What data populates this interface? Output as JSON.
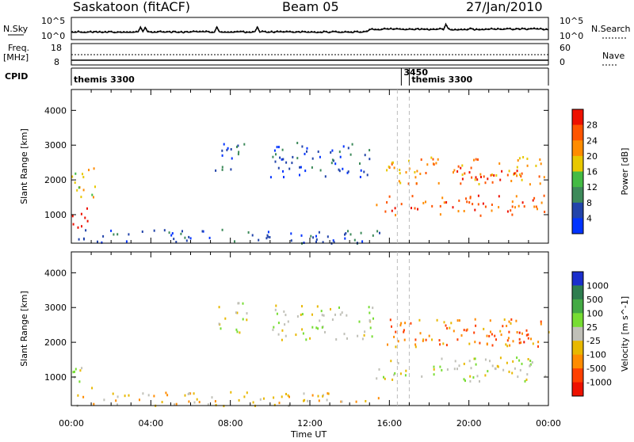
{
  "header": {
    "station": "Saskatoon (fitACF)",
    "beam": "Beam 05",
    "date": "27/Jan/2010"
  },
  "noise_panel": {
    "left_label": "N.Sky",
    "right_label": "N.Search",
    "left_ticks": [
      "10^5",
      "10^0"
    ],
    "right_ticks": [
      "10^5",
      "10^0"
    ]
  },
  "freq_panel": {
    "left_label_1": "Freq.",
    "left_label_2": "[MHz]",
    "right_label": "Nave",
    "left_ticks": [
      "18",
      "8"
    ],
    "right_ticks": [
      "60",
      "0"
    ]
  },
  "cpid_panel": {
    "label": "CPID",
    "entries": [
      {
        "text": "themis 3300",
        "time_h": 0.0
      },
      {
        "text": "3450",
        "time_h": 16.6
      },
      {
        "text": "themis 3300",
        "time_h": 17.0
      }
    ]
  },
  "chart_data": [
    {
      "type": "heatmap",
      "title": "Power",
      "ylabel": "Slant Range [km]",
      "ylim": [
        180,
        4600
      ],
      "y_ticks": [
        "1000",
        "2000",
        "3000",
        "4000"
      ],
      "colorbar_label": "Power [dB]",
      "colorbar_ticks": [
        "4",
        "8",
        "12",
        "16",
        "20",
        "24",
        "28"
      ],
      "colors": [
        "#0033ff",
        "#2244aa",
        "#3d8a5a",
        "#44bb44",
        "#e8c800",
        "#ff8c00",
        "#ff5500",
        "#ee1100"
      ],
      "regions": [
        {
          "t": [
            0.0,
            1.0
          ],
          "r": [
            600,
            1300
          ],
          "level": 7
        },
        {
          "t": [
            0.0,
            1.2
          ],
          "r": [
            1300,
            2400
          ],
          "level": 4
        },
        {
          "t": [
            0.2,
            15.5
          ],
          "r": [
            200,
            600
          ],
          "level": 1
        },
        {
          "t": [
            7.2,
            8.8
          ],
          "r": [
            2300,
            3200
          ],
          "level": 1
        },
        {
          "t": [
            10.0,
            15.3
          ],
          "r": [
            2100,
            3100
          ],
          "level": 1
        },
        {
          "t": [
            15.3,
            24.0
          ],
          "r": [
            1000,
            1600
          ],
          "level": 6
        },
        {
          "t": [
            15.8,
            24.0
          ],
          "r": [
            1900,
            2700
          ],
          "level": 5
        },
        {
          "t": [
            19.0,
            22.5
          ],
          "r": [
            2000,
            2400
          ],
          "level": 7
        }
      ]
    },
    {
      "type": "heatmap",
      "title": "Velocity",
      "ylabel": "Slant Range [km]",
      "ylim": [
        180,
        4600
      ],
      "y_ticks": [
        "1000",
        "2000",
        "3000",
        "4000"
      ],
      "colorbar_label": "Velocity [m s^-1]",
      "colorbar_ticks": [
        "1000",
        "500",
        "100",
        "25",
        "-25",
        "-100",
        "-500",
        "-1000"
      ],
      "colors": [
        "#1a2ecc",
        "#2e7d4f",
        "#44aa44",
        "#77dd33",
        "#c0c0b8",
        "#e8b800",
        "#ff8c00",
        "#ff4000",
        "#ee1100"
      ],
      "regions": [
        {
          "t": [
            0.0,
            1.0
          ],
          "r": [
            600,
            1300
          ],
          "level": 4
        },
        {
          "t": [
            0.2,
            15.5
          ],
          "r": [
            200,
            600
          ],
          "level": 5
        },
        {
          "t": [
            7.2,
            8.8
          ],
          "r": [
            2300,
            3200
          ],
          "level": 4
        },
        {
          "t": [
            10.0,
            15.3
          ],
          "r": [
            2100,
            3100
          ],
          "level": 4
        },
        {
          "t": [
            15.3,
            24.0
          ],
          "r": [
            900,
            1600
          ],
          "level": 4
        },
        {
          "t": [
            15.8,
            24.0
          ],
          "r": [
            1900,
            2700
          ],
          "level": 6
        },
        {
          "t": [
            19.0,
            23.5
          ],
          "r": [
            2000,
            2400
          ],
          "level": 7
        }
      ]
    }
  ],
  "time_axis": {
    "label": "Time UT",
    "ticks": [
      "00:00",
      "04:00",
      "08:00",
      "12:00",
      "16:00",
      "20:00",
      "00:00"
    ]
  }
}
